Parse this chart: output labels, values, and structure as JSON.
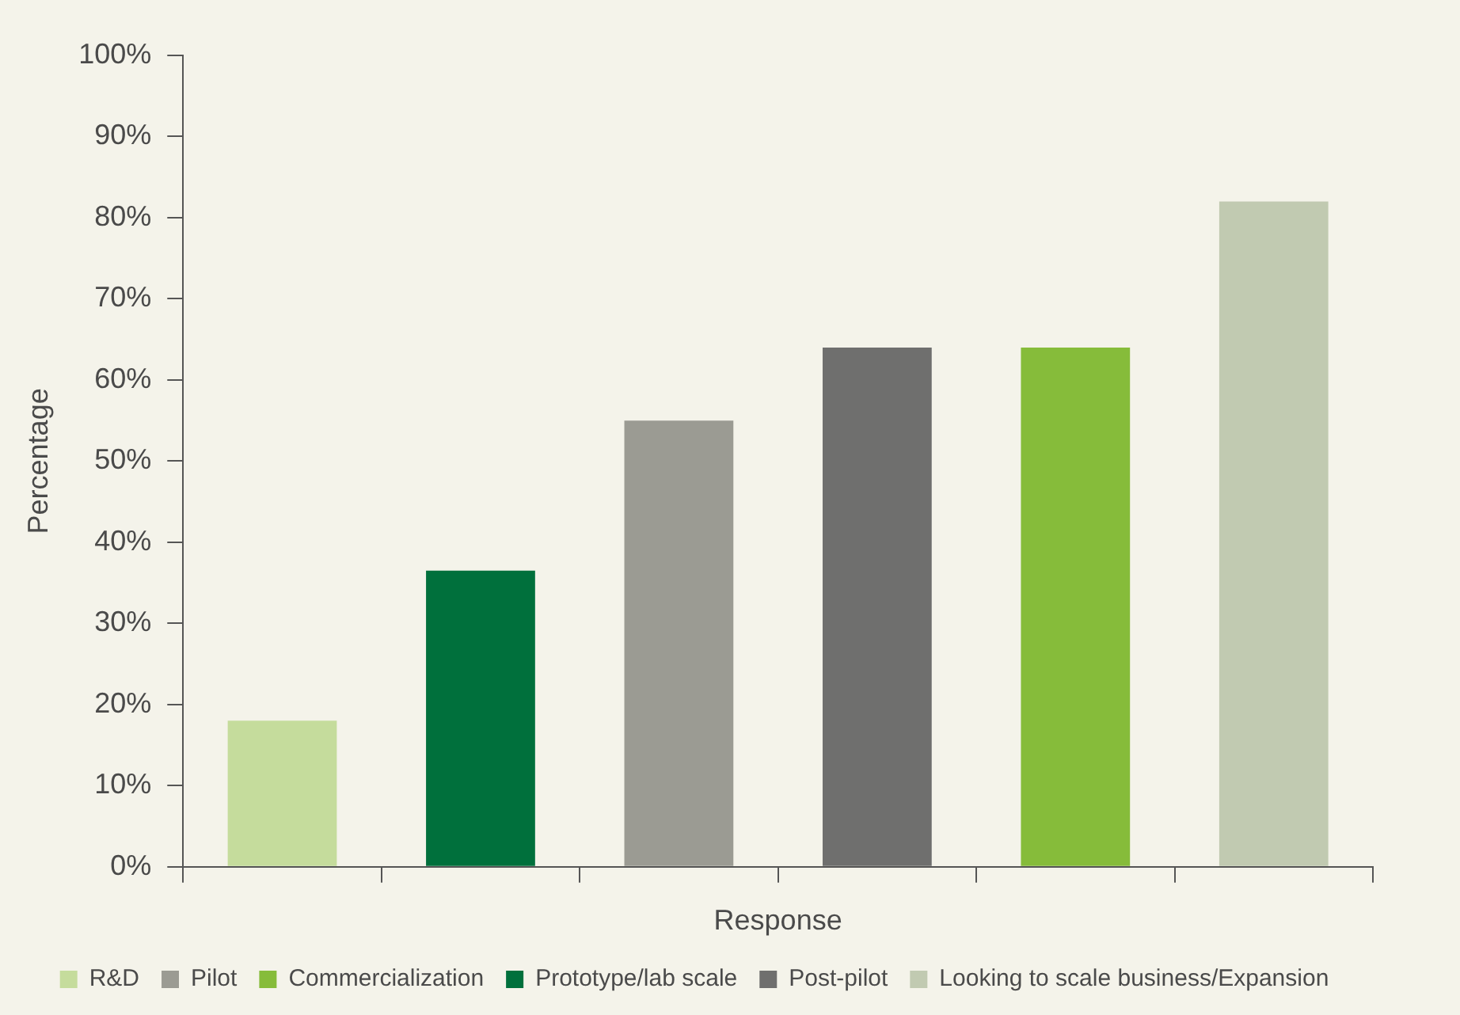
{
  "chart_data": {
    "type": "bar",
    "xlabel": "Response",
    "ylabel": "Percentage",
    "categories": [
      null,
      null,
      null,
      null,
      null,
      null
    ],
    "series": [
      {
        "name": "R&D",
        "color": "#c5dc9c",
        "values": [
          18,
          null,
          null,
          null,
          null,
          null
        ]
      },
      {
        "name": "Pilot",
        "color": "#9b9b93",
        "values": [
          null,
          null,
          55,
          null,
          null,
          null
        ]
      },
      {
        "name": "Commercialization",
        "color": "#86bc3a",
        "values": [
          null,
          null,
          null,
          null,
          64,
          null
        ]
      },
      {
        "name": "Prototype/lab scale",
        "color": "#00703c",
        "values": [
          null,
          36.5,
          null,
          null,
          null,
          null
        ]
      },
      {
        "name": "Post-pilot",
        "color": "#6f6f6e",
        "values": [
          null,
          null,
          null,
          64,
          null,
          null
        ]
      },
      {
        "name": "Looking to scale business/Expansion",
        "color": "#c1cab1",
        "values": [
          null,
          null,
          null,
          null,
          null,
          82
        ]
      }
    ],
    "ylim": [
      0,
      100
    ],
    "yticks": [
      {
        "value": 0,
        "label": "0%"
      },
      {
        "value": 10,
        "label": "10%"
      },
      {
        "value": 20,
        "label": "20%"
      },
      {
        "value": 30,
        "label": "30%"
      },
      {
        "value": 40,
        "label": "40%"
      },
      {
        "value": 50,
        "label": "50%"
      },
      {
        "value": 60,
        "label": "60%"
      },
      {
        "value": 70,
        "label": "70%"
      },
      {
        "value": 80,
        "label": "80%"
      },
      {
        "value": 90,
        "label": "90%"
      },
      {
        "value": 100,
        "label": "100%"
      }
    ],
    "grid": false,
    "legend": "bottom",
    "tick_labels": "y"
  }
}
